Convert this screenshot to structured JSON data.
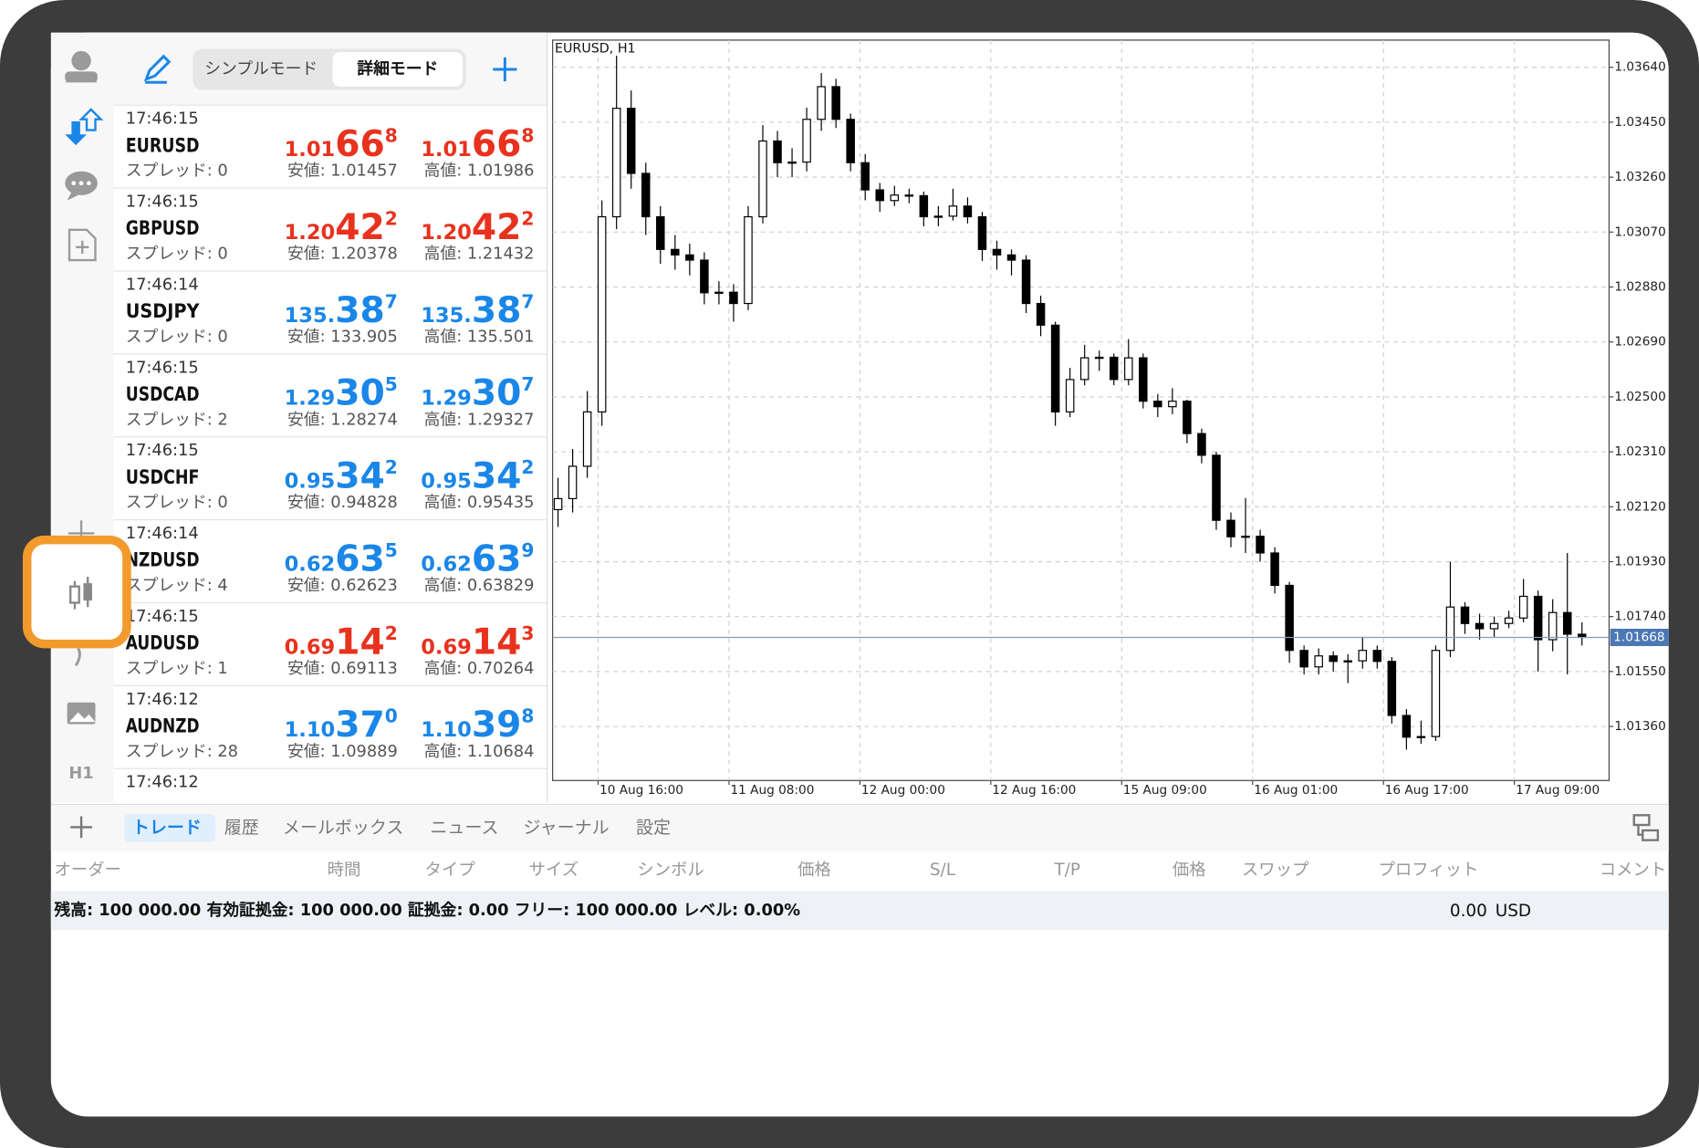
{
  "sidebar": {
    "timeframe": "H1"
  },
  "quotes": {
    "modes": [
      "シンプルモード",
      "詳細モード"
    ],
    "active_mode": 1,
    "rows": [
      {
        "time": "17:46:15",
        "symbol": "EURUSD",
        "spread": "スプレッド: 0",
        "bid": {
          "prefix": "1.01",
          "big": "66",
          "sup": "8"
        },
        "ask": {
          "prefix": "1.01",
          "big": "66",
          "sup": "8"
        },
        "low": "安値: 1.01457",
        "high": "高値: 1.01986",
        "color": "#e8321e"
      },
      {
        "time": "17:46:15",
        "symbol": "GBPUSD",
        "spread": "スプレッド: 0",
        "bid": {
          "prefix": "1.20",
          "big": "42",
          "sup": "2"
        },
        "ask": {
          "prefix": "1.20",
          "big": "42",
          "sup": "2"
        },
        "low": "安値: 1.20378",
        "high": "高値: 1.21432",
        "color": "#e8321e"
      },
      {
        "time": "17:46:14",
        "symbol": "USDJPY",
        "spread": "スプレッド: 0",
        "bid": {
          "prefix": "135.",
          "big": "38",
          "sup": "7"
        },
        "ask": {
          "prefix": "135.",
          "big": "38",
          "sup": "7"
        },
        "low": "安値: 133.905",
        "high": "高値: 135.501",
        "color": "#1a86e8"
      },
      {
        "time": "17:46:15",
        "symbol": "USDCAD",
        "spread": "スプレッド: 2",
        "bid": {
          "prefix": "1.29",
          "big": "30",
          "sup": "5"
        },
        "ask": {
          "prefix": "1.29",
          "big": "30",
          "sup": "7"
        },
        "low": "安値: 1.28274",
        "high": "高値: 1.29327",
        "color": "#1a86e8"
      },
      {
        "time": "17:46:15",
        "symbol": "USDCHF",
        "spread": "スプレッド: 0",
        "bid": {
          "prefix": "0.95",
          "big": "34",
          "sup": "2"
        },
        "ask": {
          "prefix": "0.95",
          "big": "34",
          "sup": "2"
        },
        "low": "安値: 0.94828",
        "high": "高値: 0.95435",
        "color": "#1a86e8"
      },
      {
        "time": "17:46:14",
        "symbol": "NZDUSD",
        "spread": "スプレッド: 4",
        "bid": {
          "prefix": "0.62",
          "big": "63",
          "sup": "5"
        },
        "ask": {
          "prefix": "0.62",
          "big": "63",
          "sup": "9"
        },
        "low": "安値: 0.62623",
        "high": "高値: 0.63829",
        "color": "#1a86e8"
      },
      {
        "time": "17:46:15",
        "symbol": "AUDUSD",
        "spread": "スプレッド: 1",
        "bid": {
          "prefix": "0.69",
          "big": "14",
          "sup": "2"
        },
        "ask": {
          "prefix": "0.69",
          "big": "14",
          "sup": "3"
        },
        "low": "安値: 0.69113",
        "high": "高値: 0.70264",
        "color": "#e8321e"
      },
      {
        "time": "17:46:12",
        "symbol": "AUDNZD",
        "spread": "スプレッド: 28",
        "bid": {
          "prefix": "1.10",
          "big": "37",
          "sup": "0"
        },
        "ask": {
          "prefix": "1.10",
          "big": "39",
          "sup": "8"
        },
        "low": "安値: 1.09889",
        "high": "高値: 1.10684",
        "color": "#1a86e8"
      },
      {
        "time": "17:46:12"
      }
    ]
  },
  "chart": {
    "type": "candlestick",
    "title": "EURUSD, H1",
    "ylim": [
      1.01173,
      1.03734
    ],
    "yticks": [
      {
        "value": 1.0364,
        "label": "1.03640"
      },
      {
        "value": 1.0345,
        "label": "1.03450"
      },
      {
        "value": 1.0326,
        "label": "1.03260"
      },
      {
        "value": 1.0307,
        "label": "1.03070"
      },
      {
        "value": 1.0288,
        "label": "1.02880"
      },
      {
        "value": 1.0269,
        "label": "1.02690"
      },
      {
        "value": 1.025,
        "label": "1.02500"
      },
      {
        "value": 1.0231,
        "label": "1.02310"
      },
      {
        "value": 1.0212,
        "label": "1.02120"
      },
      {
        "value": 1.0193,
        "label": "1.01930"
      },
      {
        "value": 1.0174,
        "label": "1.01740"
      },
      {
        "value": 1.0155,
        "label": "1.01550"
      },
      {
        "value": 1.0136,
        "label": "1.01360"
      }
    ],
    "xlabels": [
      "10 Aug 16:00",
      "11 Aug 08:00",
      "12 Aug 00:00",
      "12 Aug 16:00",
      "15 Aug 09:00",
      "16 Aug 01:00",
      "16 Aug 17:00",
      "17 Aug 09:00"
    ],
    "grid": true,
    "up_color": "#ffffff",
    "down_color": "#000000",
    "current": {
      "value": 1.01668,
      "label": "1.01668"
    },
    "candles": [
      [
        1.0211,
        1.0222,
        1.0205,
        1.02148
      ],
      [
        1.02148,
        1.0232,
        1.021,
        1.0226
      ],
      [
        1.0226,
        1.0252,
        1.0222,
        1.02448
      ],
      [
        1.02448,
        1.0318,
        1.024,
        1.03123
      ],
      [
        1.03123,
        1.0368,
        1.0308,
        1.03498
      ],
      [
        1.03498,
        1.0356,
        1.0322,
        1.03273
      ],
      [
        1.03273,
        1.0331,
        1.0306,
        1.03123
      ],
      [
        1.03123,
        1.0316,
        1.0296,
        1.0301
      ],
      [
        1.0301,
        1.0306,
        1.0294,
        1.02991
      ],
      [
        1.02991,
        1.0303,
        1.0292,
        1.02973
      ],
      [
        1.02973,
        1.03,
        1.0282,
        1.0286
      ],
      [
        1.0286,
        1.029,
        1.0282,
        1.02862
      ],
      [
        1.02862,
        1.0289,
        1.0276,
        1.02823
      ],
      [
        1.02823,
        1.0316,
        1.028,
        1.03123
      ],
      [
        1.03123,
        1.0344,
        1.031,
        1.03385
      ],
      [
        1.03385,
        1.0342,
        1.0326,
        1.0331
      ],
      [
        1.0331,
        1.0336,
        1.0326,
        1.03312
      ],
      [
        1.03312,
        1.035,
        1.0328,
        1.0346
      ],
      [
        1.0346,
        1.0362,
        1.0342,
        1.03573
      ],
      [
        1.03573,
        1.036,
        1.0343,
        1.0346
      ],
      [
        1.0346,
        1.0348,
        1.0328,
        1.0331
      ],
      [
        1.0331,
        1.0334,
        1.0318,
        1.03216
      ],
      [
        1.03216,
        1.0324,
        1.0314,
        1.03179
      ],
      [
        1.03179,
        1.0323,
        1.0316,
        1.03198
      ],
      [
        1.03198,
        1.0322,
        1.0317,
        1.03196
      ],
      [
        1.03196,
        1.0321,
        1.0309,
        1.03123
      ],
      [
        1.03123,
        1.0316,
        1.0309,
        1.03125
      ],
      [
        1.03125,
        1.0322,
        1.0311,
        1.0316
      ],
      [
        1.0316,
        1.0319,
        1.031,
        1.03123
      ],
      [
        1.03123,
        1.0314,
        1.0297,
        1.0301
      ],
      [
        1.0301,
        1.0304,
        1.0294,
        1.02991
      ],
      [
        1.02991,
        1.0301,
        1.0292,
        1.02973
      ],
      [
        1.02973,
        1.0299,
        1.0279,
        1.02823
      ],
      [
        1.02823,
        1.0285,
        1.0271,
        1.02748
      ],
      [
        1.02748,
        1.0276,
        1.024,
        1.02448
      ],
      [
        1.02448,
        1.026,
        1.0243,
        1.0256
      ],
      [
        1.0256,
        1.0268,
        1.0254,
        1.02635
      ],
      [
        1.02635,
        1.0266,
        1.0259,
        1.02637
      ],
      [
        1.02637,
        1.0265,
        1.0254,
        1.0256
      ],
      [
        1.0256,
        1.027,
        1.0254,
        1.02635
      ],
      [
        1.02635,
        1.0265,
        1.0246,
        1.02485
      ],
      [
        1.02485,
        1.0251,
        1.0243,
        1.02466
      ],
      [
        1.02466,
        1.0253,
        1.0244,
        1.02485
      ],
      [
        1.02485,
        1.0249,
        1.0234,
        1.02373
      ],
      [
        1.02373,
        1.0239,
        1.0227,
        1.02298
      ],
      [
        1.02298,
        1.0231,
        1.0204,
        1.02073
      ],
      [
        1.02073,
        1.021,
        1.0198,
        1.02016
      ],
      [
        1.02016,
        1.0215,
        1.0196,
        1.02018
      ],
      [
        1.02018,
        1.0204,
        1.0193,
        1.0196
      ],
      [
        1.0196,
        1.0198,
        1.0182,
        1.01848
      ],
      [
        1.01848,
        1.0186,
        1.0158,
        1.01623
      ],
      [
        1.01623,
        1.0164,
        1.0154,
        1.01566
      ],
      [
        1.01566,
        1.0163,
        1.0154,
        1.01604
      ],
      [
        1.01604,
        1.0162,
        1.0155,
        1.01585
      ],
      [
        1.01585,
        1.0161,
        1.0151,
        1.01587
      ],
      [
        1.01587,
        1.0167,
        1.0156,
        1.01623
      ],
      [
        1.01623,
        1.0164,
        1.0156,
        1.01585
      ],
      [
        1.01585,
        1.016,
        1.0137,
        1.01398
      ],
      [
        1.01398,
        1.0142,
        1.0128,
        1.01323
      ],
      [
        1.01323,
        1.0138,
        1.013,
        1.01325
      ],
      [
        1.01325,
        1.0164,
        1.0131,
        1.01623
      ],
      [
        1.01623,
        1.0193,
        1.016,
        1.01773
      ],
      [
        1.01773,
        1.0179,
        1.0168,
        1.01716
      ],
      [
        1.01716,
        1.0175,
        1.0166,
        1.01698
      ],
      [
        1.01698,
        1.0174,
        1.0167,
        1.01716
      ],
      [
        1.01716,
        1.0176,
        1.017,
        1.01735
      ],
      [
        1.01735,
        1.0187,
        1.0172,
        1.0181
      ],
      [
        1.0181,
        1.0183,
        1.0155,
        1.0166
      ],
      [
        1.0166,
        1.018,
        1.0162,
        1.01754
      ],
      [
        1.01754,
        1.0196,
        1.0154,
        1.01679
      ],
      [
        1.01679,
        1.0172,
        1.0164,
        1.01668
      ]
    ]
  },
  "toolbar": {
    "tabs": [
      "トレード",
      "履歴",
      "メールボックス",
      "ニュース",
      "ジャーナル",
      "設定"
    ],
    "active": 0
  },
  "table": {
    "columns": [
      "オーダー",
      "時間",
      "タイプ",
      "サイズ",
      "シンボル",
      "価格",
      "S/L",
      "T/P",
      "価格",
      "スワップ",
      "プロフィット",
      "コメント"
    ],
    "balance": "残高: 100 000.00 有効証拠金: 100 000.00 証拠金: 0.00 フリー: 100 000.00 レベル: 0.00%",
    "total": "0.00",
    "currency": "USD"
  }
}
